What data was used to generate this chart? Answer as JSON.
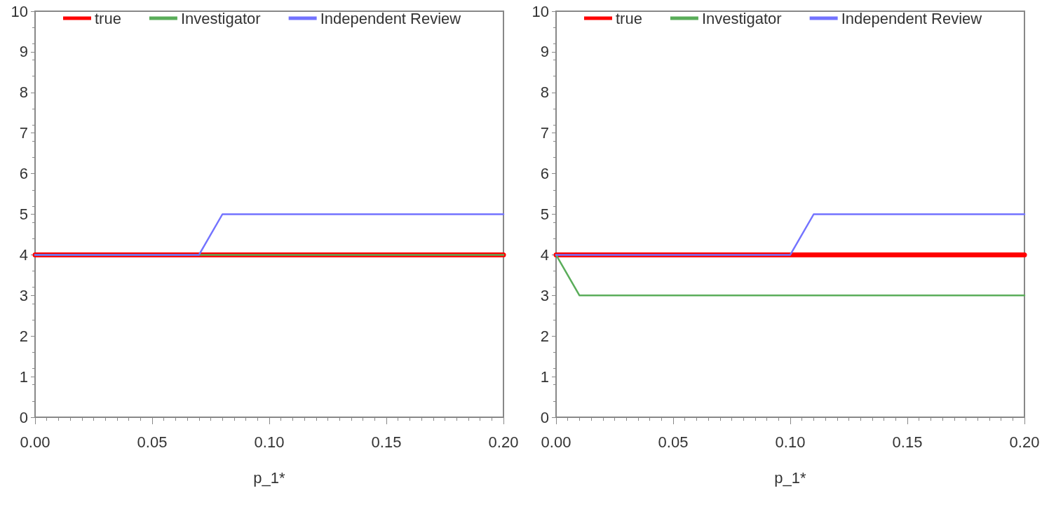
{
  "chart_data": [
    {
      "type": "line",
      "xlabel": "p_1*",
      "xlim": [
        0,
        0.2
      ],
      "xticks": [
        {
          "value": 0,
          "label": "0.00"
        },
        {
          "value": 0.05,
          "label": "0.05"
        },
        {
          "value": 0.1,
          "label": "0.10"
        },
        {
          "value": 0.15,
          "label": "0.15"
        },
        {
          "value": 0.2,
          "label": "0.20"
        }
      ],
      "ylim": [
        0,
        10
      ],
      "yticks": [
        0,
        1,
        2,
        3,
        4,
        5,
        6,
        7,
        8,
        9,
        10
      ],
      "grid": false,
      "legend": "top",
      "marker": "none",
      "line_style": "solid",
      "series": [
        {
          "name": "true",
          "color": "#ff0000",
          "x": [
            0,
            0.2
          ],
          "values": [
            4,
            4
          ]
        },
        {
          "name": "Investigator",
          "color": "#5aad5a",
          "x": [
            0,
            0.2
          ],
          "values": [
            4,
            4
          ]
        },
        {
          "name": "Independent Review",
          "color": "#7373ff",
          "x": [
            0,
            0.07,
            0.08,
            0.2
          ],
          "values": [
            4,
            4,
            5,
            5
          ]
        }
      ]
    },
    {
      "type": "line",
      "xlabel": "p_1*",
      "xlim": [
        0,
        0.2
      ],
      "xticks": [
        {
          "value": 0,
          "label": "0.00"
        },
        {
          "value": 0.05,
          "label": "0.05"
        },
        {
          "value": 0.1,
          "label": "0.10"
        },
        {
          "value": 0.15,
          "label": "0.15"
        },
        {
          "value": 0.2,
          "label": "0.20"
        }
      ],
      "ylim": [
        0,
        10
      ],
      "yticks": [
        0,
        1,
        2,
        3,
        4,
        5,
        6,
        7,
        8,
        9,
        10
      ],
      "grid": false,
      "legend": "top",
      "marker": "none",
      "line_style": "solid",
      "series": [
        {
          "name": "true",
          "color": "#ff0000",
          "x": [
            0,
            0.2
          ],
          "values": [
            4,
            4
          ]
        },
        {
          "name": "Investigator",
          "color": "#5aad5a",
          "x": [
            0,
            0.01,
            0.2
          ],
          "values": [
            4,
            3,
            3
          ]
        },
        {
          "name": "Independent Review",
          "color": "#7373ff",
          "x": [
            0,
            0.1,
            0.11,
            0.2
          ],
          "values": [
            4,
            4,
            5,
            5
          ]
        }
      ]
    }
  ]
}
